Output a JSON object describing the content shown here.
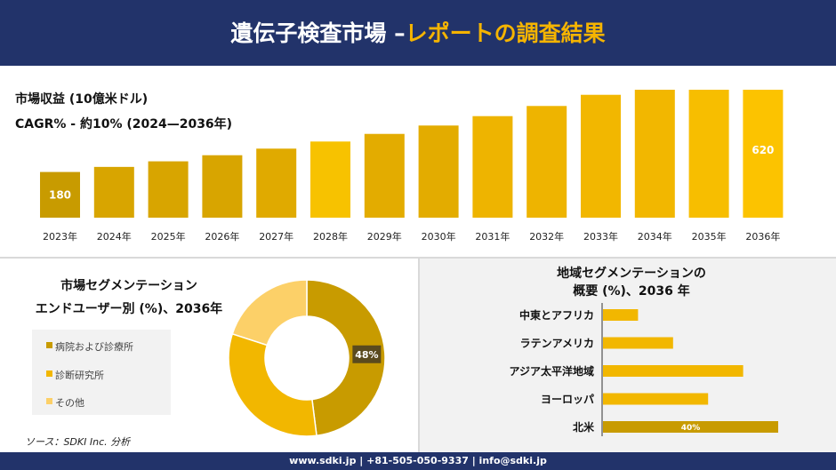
{
  "header": {
    "title_main": "遺伝子検査市場 –",
    "title_accent": "レポートの調査結果"
  },
  "metrics": {
    "revenue_label": "市場収益 (10億米ドル)",
    "cagr_label": "CAGR% - 約10% (2024—2036年)"
  },
  "colors": {
    "navy": "#22336a",
    "gold_dark": "#c89b00",
    "gold": "#e3ac00",
    "gold_bright": "#f7c200",
    "gold_light": "#fcd068"
  },
  "chart_data": [
    {
      "type": "bar",
      "categories": [
        "2023年",
        "2024年",
        "2025年",
        "2026年",
        "2027年",
        "2028年",
        "2029年",
        "2030年",
        "2031年",
        "2032年",
        "2033年",
        "2034年",
        "2035年",
        "2036年"
      ],
      "values": [
        180,
        200,
        222,
        246,
        272,
        300,
        330,
        363,
        400,
        440,
        484,
        532,
        585,
        620
      ],
      "data_labels": {
        "0": "180",
        "13": "620"
      },
      "ylim": [
        0,
        700
      ]
    },
    {
      "type": "pie",
      "title_line1": "市場セグメンテーション",
      "title_line2": "エンドユーザー別 (%)、2036年",
      "labels": [
        "病院および診療所",
        "診断研究所",
        "その他"
      ],
      "values": [
        48,
        32,
        20
      ],
      "data_labels": {
        "0": "48%"
      },
      "colors": [
        "#c89b00",
        "#f2b700",
        "#fcd068"
      ]
    },
    {
      "type": "bar",
      "orientation": "horizontal",
      "title_line1": "地域セグメンテーションの",
      "title_line2": "概要 (%)、2036 年",
      "categories": [
        "中東とアフリカ",
        "ラテンアメリカ",
        "アジア太平洋地域",
        "ヨーロッパ",
        "北米"
      ],
      "values": [
        8,
        16,
        32,
        24,
        40
      ],
      "data_labels": {
        "4": "40%"
      },
      "xlim": [
        0,
        40
      ]
    }
  ],
  "source": "ソース：SDKI Inc. 分析",
  "footer": "www.sdki.jp | +81-505-050-9337 | info@sdki.jp"
}
